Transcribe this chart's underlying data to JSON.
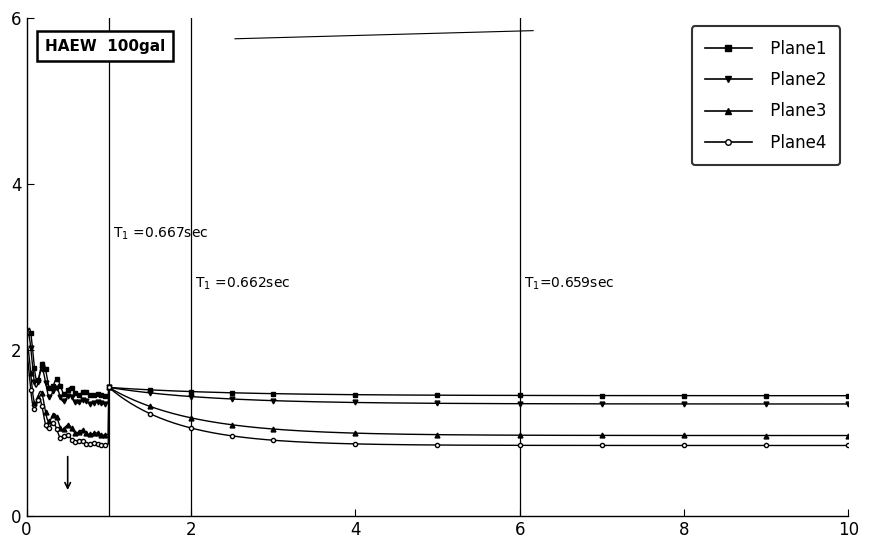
{
  "title": "",
  "xlabel": "",
  "ylabel": "",
  "xlim": [
    0,
    10
  ],
  "ylim": [
    0,
    6
  ],
  "xticks": [
    0,
    2,
    4,
    6,
    8,
    10
  ],
  "yticks": [
    0,
    2,
    4,
    6
  ],
  "annotation_box": "HAEW  100gal",
  "vline1_x": 1.0,
  "vline2_x": 2.0,
  "vline3_x": 6.0,
  "vline1_label": "T₁ =0.667sec",
  "vline2_label": "T₁ =0.662sec",
  "vline3_label": "T₁=0.659sec",
  "legend_entries": [
    "Plane1",
    "Plane2",
    "Plane3",
    "Plane4"
  ],
  "plane1_plateau": 1.45,
  "plane2_plateau": 1.35,
  "plane3_plateau": 0.97,
  "plane4_plateau": 0.85,
  "bg_color": "#ffffff",
  "line_color": "#000000",
  "figsize": [
    8.7,
    5.5
  ],
  "dpi": 100
}
